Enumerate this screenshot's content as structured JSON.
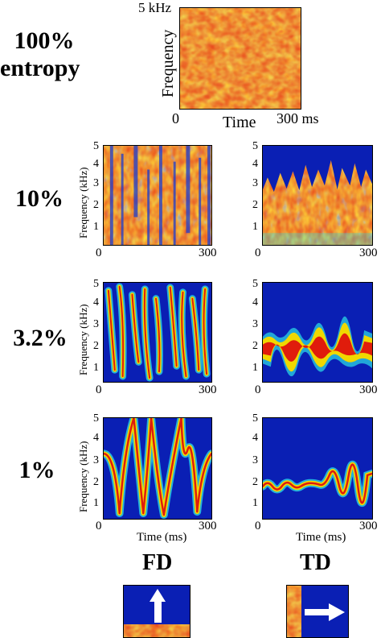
{
  "row_labels": [
    "100%",
    "entropy",
    "10%",
    "3.2%",
    "1%"
  ],
  "top_panel": {
    "y_max_label": "5 kHz",
    "y_axis_label": "Frequency",
    "x_min_label": "0",
    "x_axis_label": "Time",
    "x_max_label": "300 ms"
  },
  "small_panel": {
    "y_axis_label": "Frequency (kHz)",
    "y_ticks": [
      "5",
      "4",
      "3",
      "2",
      "1"
    ],
    "x_min_label": "0",
    "x_max_label": "300",
    "x_axis_label": "Time (ms)"
  },
  "columns": {
    "left": "FD",
    "right": "TD"
  },
  "colors": {
    "background_blue": "#0a1fb4",
    "hot_red": "#e01c0c",
    "mid_yellow": "#f0d800",
    "cool_cyan": "#29d6e6",
    "arrow_white": "#ffffff"
  },
  "icons": [
    "up-arrow-icon",
    "right-arrow-icon"
  ]
}
